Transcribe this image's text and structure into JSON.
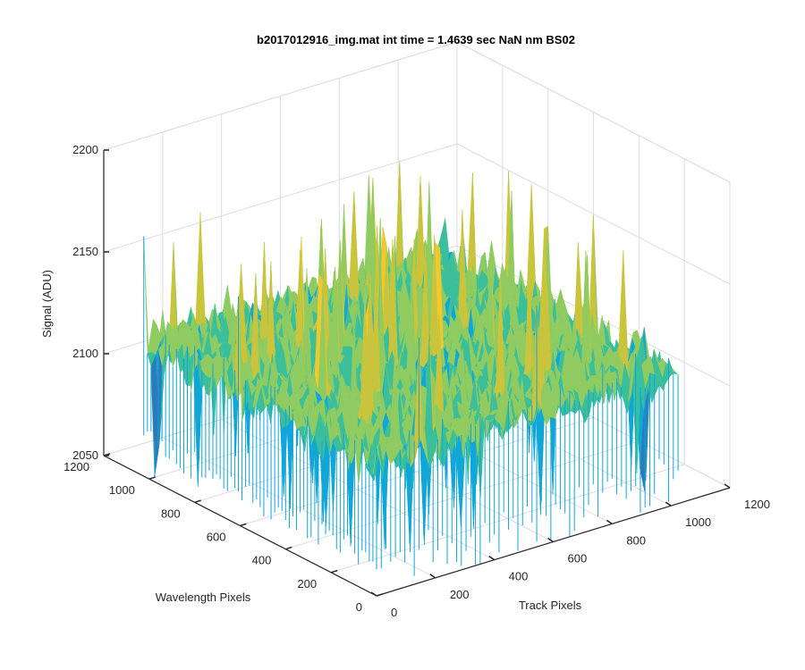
{
  "chart_data": {
    "type": "surface",
    "title": "b2017012916_img.mat int time = 1.4639 sec  NaN nm BS02",
    "xlabel": "Track Pixels",
    "ylabel": "Wavelength Pixels",
    "zlabel": "Signal (ADU)",
    "xlim": [
      0,
      1200
    ],
    "ylim": [
      0,
      1200
    ],
    "zlim": [
      2050,
      2200
    ],
    "xticks": [
      "0",
      "200",
      "400",
      "600",
      "800",
      "1000",
      "1200"
    ],
    "yticks": [
      "0",
      "200",
      "400",
      "600",
      "800",
      "1000",
      "1200"
    ],
    "zticks": [
      "2050",
      "2100",
      "2150",
      "2200"
    ],
    "data_extent": {
      "x": [
        0,
        1024
      ],
      "y": [
        0,
        1024
      ]
    },
    "signal_summary": {
      "typical_min": 2080,
      "typical_mean": 2115,
      "typical_max": 2150,
      "peak_max": 2175
    },
    "grid": true,
    "colormap": [
      "#2b7bba",
      "#11a6d8",
      "#3bbf9a",
      "#8fcb60",
      "#c9c43c",
      "#f0c830"
    ]
  }
}
